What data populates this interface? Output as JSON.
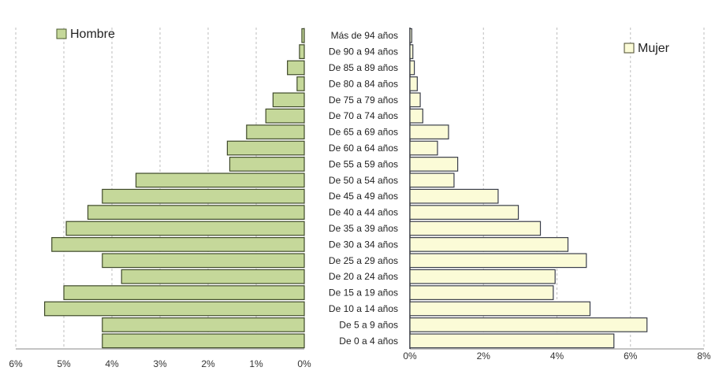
{
  "chart_data": {
    "type": "bar",
    "subtype": "population-pyramid",
    "categories": [
      "Más de 94 años",
      "De 90 a 94 años",
      "De 85 a 89 años",
      "De 80 a 84 años",
      "De 75 a 79 años",
      "De 70 a 74 años",
      "De 65 a 69 años",
      "De 60 a 64 años",
      "De 55 a 59 años",
      "De 50 a 54 años",
      "De 45 a 49 años",
      "De 40 a 44 años",
      "De 35 a 39 años",
      "De 30 a 34 años",
      "De 25 a 29 años",
      "De 20 a 24 años",
      "De 15 a 19 años",
      "De 10 a 14 años",
      "De 5 a 9 años",
      "De 0 a 4 años"
    ],
    "series": [
      {
        "name": "Hombre",
        "color": "#c5d89a",
        "values": [
          0.05,
          0.1,
          0.35,
          0.15,
          0.65,
          0.8,
          1.2,
          1.6,
          1.55,
          3.5,
          4.2,
          4.5,
          4.95,
          5.25,
          4.2,
          3.8,
          5.0,
          5.4,
          4.2,
          4.2
        ]
      },
      {
        "name": "Mujer",
        "color": "#fbfbd7",
        "values": [
          0.05,
          0.08,
          0.12,
          0.2,
          0.28,
          0.35,
          1.05,
          0.75,
          1.3,
          1.2,
          2.4,
          2.95,
          3.55,
          4.3,
          4.8,
          3.95,
          3.9,
          4.9,
          6.45,
          5.55
        ]
      }
    ],
    "left_axis": {
      "ticks": [
        "6%",
        "5%",
        "4%",
        "3%",
        "2%",
        "1%",
        "0%"
      ],
      "range": [
        0,
        6
      ],
      "unit": "%"
    },
    "right_axis": {
      "ticks": [
        "0%",
        "2%",
        "4%",
        "6%",
        "8%"
      ],
      "range": [
        0,
        8
      ],
      "unit": "%"
    },
    "grid": true,
    "legend_placement": "top-left and top-right"
  },
  "legend": {
    "male": "Hombre",
    "female": "Mujer"
  }
}
